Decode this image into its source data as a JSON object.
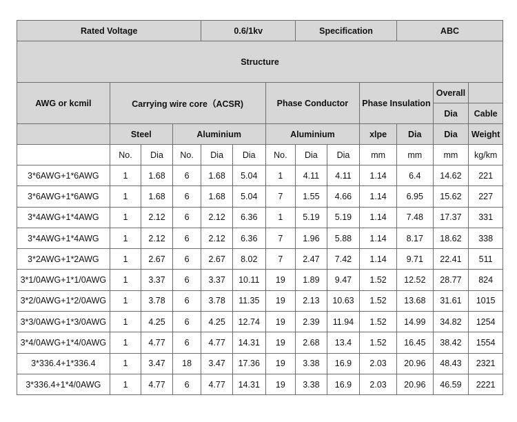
{
  "top": {
    "rated_voltage_label": "Rated Voltage",
    "rated_voltage_value": "0.6/1kv",
    "specification_label": "Specification",
    "specification_value": "ABC"
  },
  "structure_label": "Structure",
  "headers": {
    "awg": "AWG or kcmil",
    "carrying_core": "Carrying wire core（ACSR)",
    "phase_conductor": "Phase Conductor",
    "phase_insulation": "Phase Insulation",
    "overall": "Overall",
    "dia": "Dia",
    "cable": "Cable",
    "steel": "Steel",
    "aluminium": "Aluminium",
    "xlpe": "xlpe",
    "weight": "Weight"
  },
  "units": {
    "no": "No.",
    "dia": "Dia",
    "mm": "mm",
    "kg_km": "kg/km"
  },
  "rows": [
    [
      "3*6AWG+1*6AWG",
      "1",
      "1.68",
      "6",
      "1.68",
      "5.04",
      "1",
      "4.11",
      "4.11",
      "1.14",
      "6.4",
      "14.62",
      "221"
    ],
    [
      "3*6AWG+1*6AWG",
      "1",
      "1.68",
      "6",
      "1.68",
      "5.04",
      "7",
      "1.55",
      "4.66",
      "1.14",
      "6.95",
      "15.62",
      "227"
    ],
    [
      "3*4AWG+1*4AWG",
      "1",
      "2.12",
      "6",
      "2.12",
      "6.36",
      "1",
      "5.19",
      "5.19",
      "1.14",
      "7.48",
      "17.37",
      "331"
    ],
    [
      "3*4AWG+1*4AWG",
      "1",
      "2.12",
      "6",
      "2.12",
      "6.36",
      "7",
      "1.96",
      "5.88",
      "1.14",
      "8.17",
      "18.62",
      "338"
    ],
    [
      "3*2AWG+1*2AWG",
      "1",
      "2.67",
      "6",
      "2.67",
      "8.02",
      "7",
      "2.47",
      "7.42",
      "1.14",
      "9.71",
      "22.41",
      "511"
    ],
    [
      "3*1/0AWG+1*1/0AWG",
      "1",
      "3.37",
      "6",
      "3.37",
      "10.11",
      "19",
      "1.89",
      "9.47",
      "1.52",
      "12.52",
      "28.77",
      "824"
    ],
    [
      "3*2/0AWG+1*2/0AWG",
      "1",
      "3.78",
      "6",
      "3.78",
      "11.35",
      "19",
      "2.13",
      "10.63",
      "1.52",
      "13.68",
      "31.61",
      "1015"
    ],
    [
      "3*3/0AWG+1*3/0AWG",
      "1",
      "4.25",
      "6",
      "4.25",
      "12.74",
      "19",
      "2.39",
      "11.94",
      "1.52",
      "14.99",
      "34.82",
      "1254"
    ],
    [
      "3*4/0AWG+1*4/0AWG",
      "1",
      "4.77",
      "6",
      "4.77",
      "14.31",
      "19",
      "2.68",
      "13.4",
      "1.52",
      "16.45",
      "38.42",
      "1554"
    ],
    [
      "3*336.4+1*336.4",
      "1",
      "3.47",
      "18",
      "3.47",
      "17.36",
      "19",
      "3.38",
      "16.9",
      "2.03",
      "20.96",
      "48.43",
      "2321"
    ],
    [
      "3*336.4+1*4/0AWG",
      "1",
      "4.77",
      "6",
      "4.77",
      "14.31",
      "19",
      "3.38",
      "16.9",
      "2.03",
      "20.96",
      "46.59",
      "2221"
    ]
  ]
}
